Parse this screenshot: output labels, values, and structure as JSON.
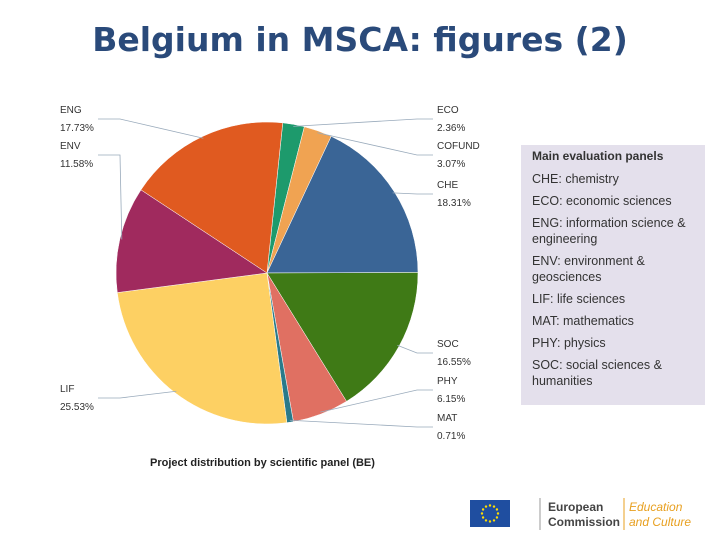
{
  "slide": {
    "title": "Belgium in MSCA: figures (2)"
  },
  "chart_data": {
    "type": "pie",
    "title": "Project distribution by scientific panel (BE)",
    "categories": [
      "ECO",
      "COFUND",
      "CHE",
      "SOC",
      "PHY",
      "MAT",
      "LIF",
      "ENV",
      "ENG"
    ],
    "values": [
      2.36,
      3.07,
      18.31,
      16.55,
      6.15,
      0.71,
      25.53,
      11.58,
      17.73
    ],
    "value_labels": [
      "2.36%",
      "3.07%",
      "18.31%",
      "16.55%",
      "6.15%",
      "0.71%",
      "25.53%",
      "11.58%",
      "17.73%"
    ],
    "colors": [
      "#1d9a6c",
      "#f0a352",
      "#3a6596",
      "#3f7a16",
      "#e07062",
      "#2a7a8a",
      "#fdd063",
      "#a02a5e",
      "#e05a20"
    ]
  },
  "legend": {
    "title": "Main evaluation panels",
    "items": [
      "CHE: chemistry",
      "ECO: economic sciences",
      "ENG: information science & engineering",
      "ENV: environment & geosciences",
      "LIF: life sciences",
      "MAT: mathematics",
      "PHY: physics",
      "SOC: social sciences & humanities"
    ]
  },
  "logo": {
    "org_line1": "European",
    "org_line2": "Commission",
    "dg_line1": "Education",
    "dg_line2": "and Culture"
  }
}
